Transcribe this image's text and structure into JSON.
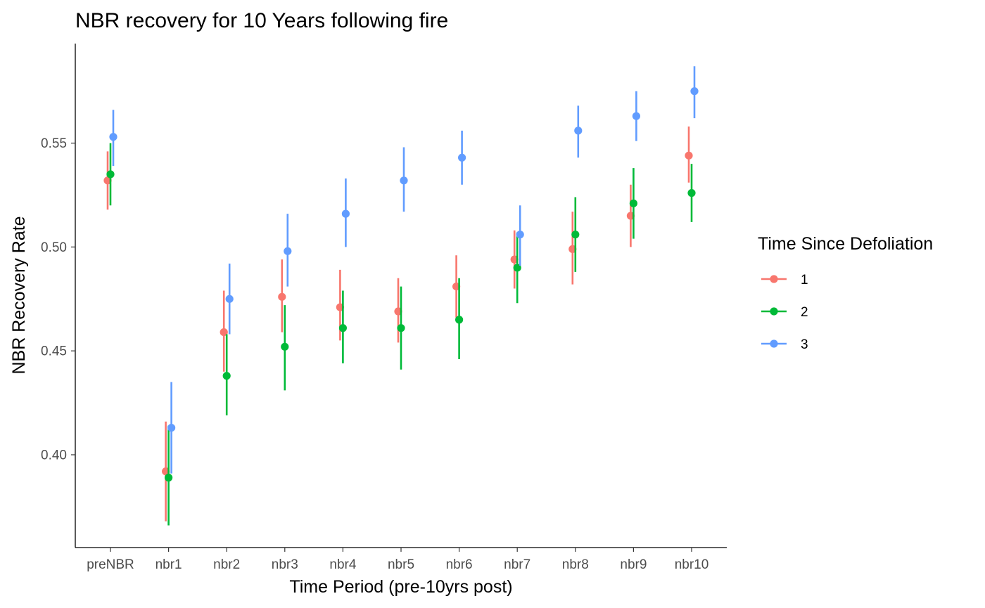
{
  "chart_data": {
    "type": "scatter",
    "title": "NBR recovery for 10 Years following fire",
    "xlabel": "Time Period (pre-10yrs post)",
    "ylabel": "NBR Recovery Rate",
    "categories": [
      "preNBR",
      "nbr1",
      "nbr2",
      "nbr3",
      "nbr4",
      "nbr5",
      "nbr6",
      "nbr7",
      "nbr8",
      "nbr9",
      "nbr10"
    ],
    "ylim": [
      0.355,
      0.59
    ],
    "yticks": [
      0.4,
      0.45,
      0.5,
      0.55
    ],
    "ytick_labels": [
      "0.40",
      "0.45",
      "0.50",
      "0.55"
    ],
    "grid": false,
    "error_bars": true,
    "legend": {
      "title": "Time Since Defoliation",
      "position": "right"
    },
    "series": [
      {
        "name": "1",
        "color": "#F8766D",
        "values": [
          0.532,
          0.392,
          0.459,
          0.476,
          0.471,
          0.469,
          0.481,
          0.494,
          0.499,
          0.515,
          0.544
        ],
        "lower": [
          0.518,
          0.368,
          0.44,
          0.459,
          0.455,
          0.454,
          0.466,
          0.48,
          0.482,
          0.5,
          0.531
        ],
        "upper": [
          0.546,
          0.416,
          0.479,
          0.494,
          0.489,
          0.485,
          0.496,
          0.508,
          0.517,
          0.53,
          0.558
        ]
      },
      {
        "name": "2",
        "color": "#00BA38",
        "values": [
          0.535,
          0.389,
          0.438,
          0.452,
          0.461,
          0.461,
          0.465,
          0.49,
          0.506,
          0.521,
          0.526
        ],
        "lower": [
          0.52,
          0.366,
          0.419,
          0.431,
          0.444,
          0.441,
          0.446,
          0.473,
          0.488,
          0.504,
          0.512
        ],
        "upper": [
          0.55,
          0.414,
          0.458,
          0.472,
          0.479,
          0.481,
          0.485,
          0.507,
          0.524,
          0.538,
          0.54
        ]
      },
      {
        "name": "3",
        "color": "#619CFF",
        "values": [
          0.553,
          0.413,
          0.475,
          0.498,
          0.516,
          0.532,
          0.543,
          0.506,
          0.556,
          0.563,
          0.575
        ],
        "lower": [
          0.539,
          0.391,
          0.458,
          0.481,
          0.5,
          0.517,
          0.53,
          0.491,
          0.543,
          0.551,
          0.562
        ],
        "upper": [
          0.566,
          0.435,
          0.492,
          0.516,
          0.533,
          0.548,
          0.556,
          0.52,
          0.568,
          0.575,
          0.587
        ]
      }
    ]
  }
}
